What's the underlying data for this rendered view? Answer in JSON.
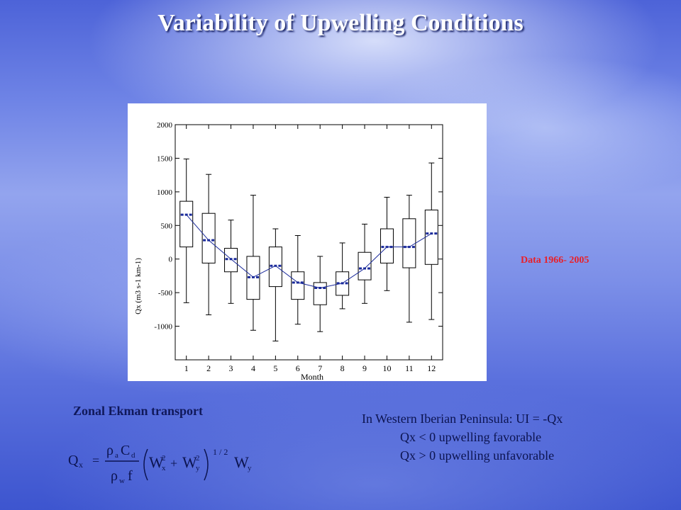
{
  "slide": {
    "title": "Variability of Upwelling Conditions",
    "note": "Data 1966- 2005",
    "ekman_label": "Zonal Ekman transport",
    "ui_lines": [
      "In Western Iberian Peninsula: UI = -Qx",
      "Qx < 0 upwelling favorable",
      "Qx > 0 upwelling unfavorable"
    ]
  },
  "formula": {
    "lhs": "Q",
    "lhs_sub": "x",
    "equals": "=",
    "num_rho": "ρ",
    "num_rho_sub": "a",
    "num_c": "C",
    "num_c_sub": "d",
    "den_rho": "ρ",
    "den_rho_sub": "w",
    "den_f": "f",
    "w": "W",
    "wx_sub": "x",
    "wy_sub": "y",
    "sq": "2",
    "plus": "+",
    "exponent": "1 / 2",
    "last_sub": "y"
  },
  "chart_data": {
    "type": "box",
    "xlabel": "Month",
    "ylabel": "Qx (m3 s-1 km-1)",
    "ylim": [
      -1500,
      2000
    ],
    "yticks": [
      2000,
      1500,
      1000,
      500,
      0,
      -500,
      -1000
    ],
    "categories": [
      "1",
      "2",
      "3",
      "4",
      "5",
      "6",
      "7",
      "8",
      "9",
      "10",
      "11",
      "12"
    ],
    "series": [
      {
        "whisker_low": [
          -650,
          -830,
          -660,
          -1060,
          -1220,
          -970,
          -1080,
          -740,
          -660,
          -470,
          -940,
          -900
        ],
        "q1": [
          180,
          -60,
          -190,
          -600,
          -410,
          -600,
          -680,
          -540,
          -310,
          -60,
          -130,
          -80
        ],
        "median": [
          660,
          280,
          0,
          -270,
          -100,
          -350,
          -430,
          -360,
          -140,
          180,
          180,
          380
        ],
        "q3": [
          860,
          680,
          160,
          40,
          180,
          -190,
          -350,
          -190,
          100,
          450,
          600,
          730
        ],
        "whisker_high": [
          1490,
          1260,
          580,
          950,
          450,
          350,
          40,
          240,
          520,
          920,
          950,
          1430
        ],
        "mean": [
          660,
          280,
          0,
          -270,
          -100,
          -350,
          -430,
          -360,
          -140,
          180,
          180,
          380
        ]
      }
    ],
    "grid": false,
    "legend": "none"
  }
}
